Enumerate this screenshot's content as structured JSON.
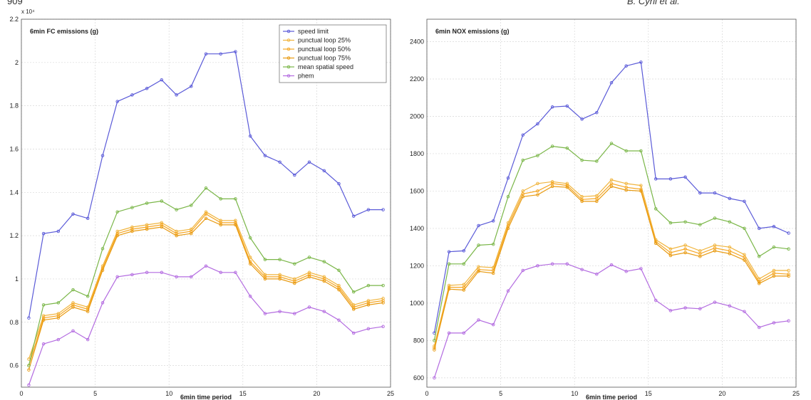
{
  "page_header": {
    "left": "909",
    "right": "B. Cyril et al."
  },
  "chart_data": [
    {
      "type": "line",
      "title": "6min FC emissions (g)",
      "xlabel": "6min time period",
      "ylabel": "",
      "exponent_label": "x 10⁴",
      "xlim": [
        0,
        25
      ],
      "ylim": [
        0.5,
        2.2
      ],
      "xticks": [
        0,
        5,
        10,
        15,
        20,
        25
      ],
      "yticks": [
        0.6,
        0.8,
        1,
        1.2,
        1.4,
        1.6,
        1.8,
        2,
        2.2
      ],
      "ytick_labels": [
        "0.6",
        "0.8",
        "1",
        "1.2",
        "1.4",
        "1.6",
        "1.8",
        "2",
        "2.2"
      ],
      "grid": true,
      "legend_position": "top-right",
      "x": [
        0.5,
        1.5,
        2.5,
        3.5,
        4.5,
        5.5,
        6.5,
        7.5,
        8.5,
        9.5,
        10.5,
        11.5,
        12.5,
        13.5,
        14.5,
        15.5,
        16.5,
        17.5,
        18.5,
        19.5,
        20.5,
        21.5,
        22.5,
        23.5,
        24.5
      ],
      "series": [
        {
          "name": "speed limit",
          "color": "#5a5ad8",
          "values": [
            0.82,
            1.21,
            1.22,
            1.3,
            1.28,
            1.57,
            1.82,
            1.85,
            1.88,
            1.92,
            1.85,
            1.89,
            2.04,
            2.04,
            2.05,
            1.66,
            1.57,
            1.54,
            1.48,
            1.54,
            1.5,
            1.44,
            1.29,
            1.32,
            1.32
          ]
        },
        {
          "name": "punctual loop 25%",
          "color": "#f0b43c",
          "values": [
            0.63,
            0.83,
            0.84,
            0.89,
            0.87,
            1.06,
            1.22,
            1.24,
            1.25,
            1.26,
            1.22,
            1.23,
            1.31,
            1.27,
            1.27,
            1.1,
            1.02,
            1.02,
            1.0,
            1.03,
            1.01,
            0.97,
            0.88,
            0.9,
            0.91
          ]
        },
        {
          "name": "punctual loop 50%",
          "color": "#f5a623",
          "values": [
            0.6,
            0.82,
            0.83,
            0.88,
            0.86,
            1.05,
            1.21,
            1.23,
            1.24,
            1.25,
            1.21,
            1.22,
            1.3,
            1.26,
            1.26,
            1.08,
            1.01,
            1.01,
            0.99,
            1.02,
            1.0,
            0.96,
            0.87,
            0.89,
            0.9
          ]
        },
        {
          "name": "punctual loop 75%",
          "color": "#e89a10",
          "values": [
            0.58,
            0.81,
            0.82,
            0.87,
            0.85,
            1.04,
            1.2,
            1.22,
            1.23,
            1.24,
            1.2,
            1.21,
            1.28,
            1.25,
            1.25,
            1.07,
            1.0,
            1.0,
            0.98,
            1.01,
            0.99,
            0.95,
            0.86,
            0.88,
            0.89
          ]
        },
        {
          "name": "mean spatial speed",
          "color": "#7ab648",
          "values": [
            0.6,
            0.88,
            0.89,
            0.95,
            0.92,
            1.14,
            1.31,
            1.33,
            1.35,
            1.36,
            1.32,
            1.34,
            1.42,
            1.37,
            1.37,
            1.19,
            1.09,
            1.09,
            1.07,
            1.1,
            1.08,
            1.04,
            0.94,
            0.97,
            0.97
          ]
        },
        {
          "name": "phem",
          "color": "#b36be0",
          "values": [
            0.51,
            0.7,
            0.72,
            0.76,
            0.72,
            0.89,
            1.01,
            1.02,
            1.03,
            1.03,
            1.01,
            1.01,
            1.06,
            1.03,
            1.03,
            0.92,
            0.84,
            0.85,
            0.84,
            0.87,
            0.85,
            0.81,
            0.75,
            0.77,
            0.78
          ]
        }
      ]
    },
    {
      "type": "line",
      "title": "6min NOX emissions (g)",
      "xlabel": "6min time period",
      "ylabel": "",
      "xlim": [
        0,
        25
      ],
      "ylim": [
        550,
        2520
      ],
      "xticks": [
        0,
        5,
        10,
        15,
        20,
        25
      ],
      "yticks": [
        600,
        800,
        1000,
        1200,
        1400,
        1600,
        1800,
        2000,
        2200,
        2400
      ],
      "ytick_labels": [
        "600",
        "800",
        "1000",
        "1200",
        "1400",
        "1600",
        "1800",
        "2000",
        "2200",
        "2400"
      ],
      "grid": true,
      "x": [
        0.5,
        1.5,
        2.5,
        3.5,
        4.5,
        5.5,
        6.5,
        7.5,
        8.5,
        9.5,
        10.5,
        11.5,
        12.5,
        13.5,
        14.5,
        15.5,
        16.5,
        17.5,
        18.5,
        19.5,
        20.5,
        21.5,
        22.5,
        23.5,
        24.5
      ],
      "series": [
        {
          "color": "#5a5ad8",
          "values": [
            840,
            1275,
            1280,
            1415,
            1440,
            1670,
            1900,
            1960,
            2050,
            2055,
            1985,
            2020,
            2180,
            2270,
            2290,
            1665,
            1665,
            1675,
            1590,
            1590,
            1560,
            1545,
            1400,
            1410,
            1375
          ]
        },
        {
          "color": "#f0b43c",
          "values": [
            770,
            1095,
            1100,
            1195,
            1190,
            1430,
            1600,
            1640,
            1650,
            1640,
            1570,
            1575,
            1660,
            1640,
            1630,
            1340,
            1290,
            1310,
            1280,
            1310,
            1300,
            1260,
            1130,
            1175,
            1175
          ]
        },
        {
          "color": "#f5a623",
          "values": [
            760,
            1085,
            1085,
            1180,
            1175,
            1415,
            1585,
            1600,
            1640,
            1630,
            1555,
            1560,
            1640,
            1620,
            1610,
            1330,
            1270,
            1290,
            1265,
            1295,
            1280,
            1245,
            1115,
            1160,
            1155
          ]
        },
        {
          "color": "#e89a10",
          "values": [
            750,
            1075,
            1070,
            1170,
            1160,
            1400,
            1570,
            1580,
            1625,
            1620,
            1545,
            1545,
            1625,
            1605,
            1600,
            1320,
            1255,
            1270,
            1250,
            1280,
            1265,
            1230,
            1105,
            1145,
            1145
          ]
        },
        {
          "color": "#7ab648",
          "values": [
            800,
            1210,
            1210,
            1310,
            1315,
            1570,
            1765,
            1790,
            1840,
            1830,
            1765,
            1760,
            1855,
            1815,
            1815,
            1505,
            1430,
            1435,
            1420,
            1455,
            1435,
            1400,
            1250,
            1300,
            1290
          ]
        },
        {
          "color": "#b36be0",
          "values": [
            600,
            840,
            840,
            910,
            885,
            1065,
            1175,
            1200,
            1210,
            1210,
            1180,
            1155,
            1205,
            1170,
            1185,
            1015,
            960,
            975,
            970,
            1005,
            985,
            955,
            870,
            895,
            905
          ]
        }
      ]
    }
  ]
}
